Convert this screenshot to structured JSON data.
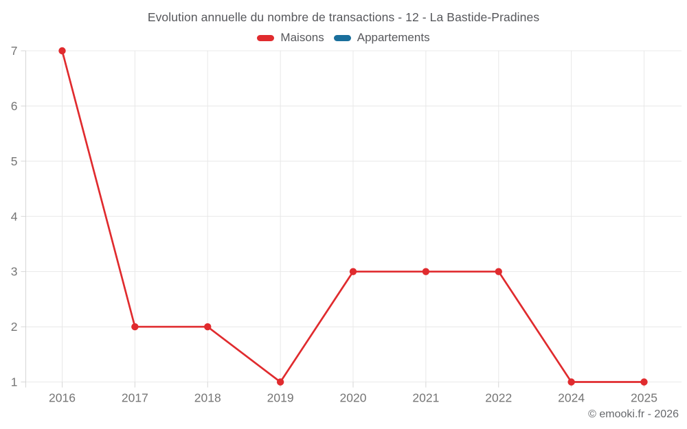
{
  "title": "Evolution annuelle du nombre de transactions - 12 - La Bastide-Pradines",
  "legend": {
    "items": [
      {
        "label": "Maisons",
        "color": "#e02b2e"
      },
      {
        "label": "Appartements",
        "color": "#1a6f9c"
      }
    ]
  },
  "footer": {
    "credit": "© emooki.fr - 2026"
  },
  "colors": {
    "series_maisons": "#e02b2e",
    "series_appartements": "#1a6f9c",
    "gridline": "#e8e8e8",
    "axis_tick": "#d6d6d6",
    "axis_label": "#757575",
    "title_text": "#56575b",
    "background": "#ffffff"
  },
  "chart_data": {
    "type": "line",
    "title": "Evolution annuelle du nombre de transactions - 12 - La Bastide-Pradines",
    "categories": [
      "2016",
      "2017",
      "2018",
      "2019",
      "2020",
      "2021",
      "2022",
      "2024",
      "2025"
    ],
    "series": [
      {
        "name": "Maisons",
        "color": "#e02b2e",
        "values": [
          7,
          2,
          2,
          1,
          3,
          3,
          3,
          1,
          1
        ]
      },
      {
        "name": "Appartements",
        "color": "#1a6f9c",
        "values": []
      }
    ],
    "xlabel": "",
    "ylabel": "",
    "ylim": [
      1,
      7
    ],
    "yticks": [
      1,
      2,
      3,
      4,
      5,
      6,
      7
    ],
    "grid": true,
    "legend_position": "top"
  }
}
